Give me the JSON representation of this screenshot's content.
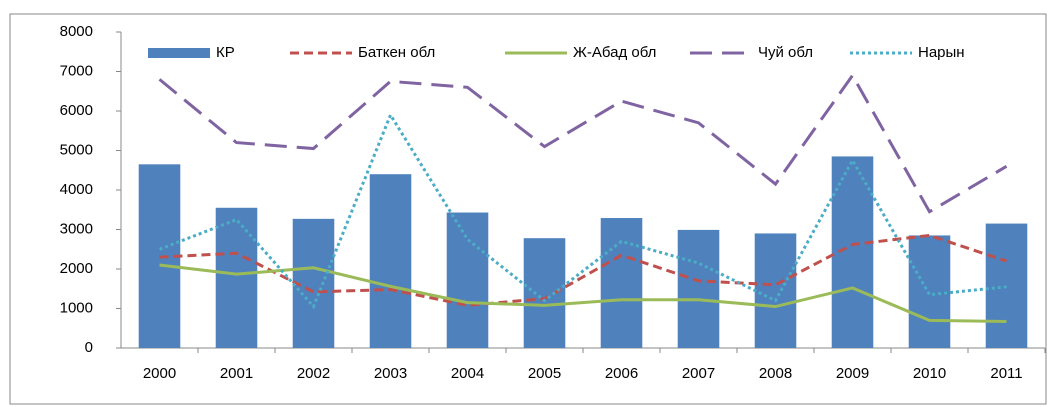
{
  "chart_data": {
    "type": "bar-line",
    "categories": [
      "2000",
      "2001",
      "2002",
      "2003",
      "2004",
      "2005",
      "2006",
      "2007",
      "2008",
      "2009",
      "2010",
      "2011"
    ],
    "series": [
      {
        "name": "КР",
        "type": "bar",
        "color": "#4f81bd",
        "values": [
          4650,
          3550,
          3270,
          4400,
          3430,
          2780,
          3290,
          2990,
          2900,
          4850,
          2850,
          3150
        ]
      },
      {
        "name": "Баткен обл",
        "type": "line",
        "dash": "dashed",
        "color": "#c0504d",
        "values": [
          2300,
          2400,
          1420,
          1480,
          1080,
          1250,
          2350,
          1700,
          1600,
          2620,
          2850,
          2200
        ]
      },
      {
        "name": "Ж-Абад обл",
        "type": "line",
        "dash": "solid",
        "color": "#9bbb59",
        "values": [
          2100,
          1870,
          2030,
          1560,
          1150,
          1080,
          1220,
          1220,
          1050,
          1520,
          700,
          670
        ]
      },
      {
        "name": "Чуй обл",
        "type": "line",
        "dash": "long-dash",
        "color": "#8064a2",
        "values": [
          6800,
          5200,
          5050,
          6750,
          6600,
          5100,
          6250,
          5700,
          4150,
          6900,
          3450,
          4600
        ]
      },
      {
        "name": "Нарын",
        "type": "line",
        "dash": "dotted",
        "color": "#4bacc6",
        "values": [
          2500,
          3250,
          1050,
          5900,
          2750,
          1200,
          2700,
          2150,
          1200,
          4750,
          1350,
          1550
        ]
      }
    ],
    "ylim": [
      0,
      8000
    ],
    "yticks": [
      0,
      1000,
      2000,
      3000,
      4000,
      5000,
      6000,
      7000,
      8000
    ],
    "grid": false,
    "legend": "top"
  }
}
